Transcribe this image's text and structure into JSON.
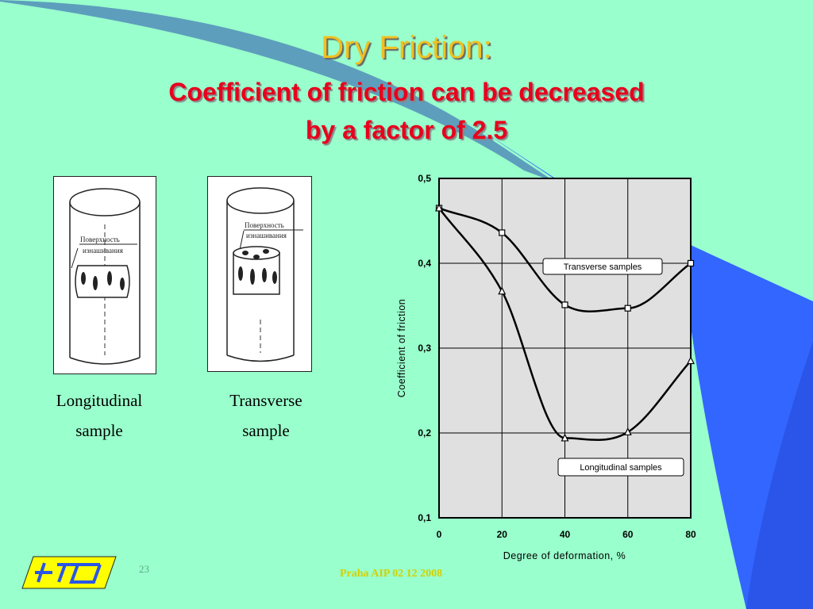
{
  "title": "Dry Friction:",
  "subtitle_line1": "Coefficient of friction can be decreased",
  "subtitle_line2": "by a factor of 2.5",
  "samples": {
    "longitudinal": {
      "caption_line1": "Longitudinal",
      "caption_line2": "sample",
      "label_line1": "Поверхность",
      "label_line2": "изнашивания"
    },
    "transverse": {
      "caption_line1": "Transverse",
      "caption_line2": "sample",
      "label_line1": "Поверхность",
      "label_line2": "изнашивания"
    }
  },
  "chart_data": {
    "type": "line",
    "xlabel": "Degree of deformation, %",
    "ylabel": "Coefficient  of  friction",
    "xlim": [
      0,
      80
    ],
    "ylim": [
      0.1,
      0.5
    ],
    "x_ticks": [
      "0",
      "20",
      "40",
      "60",
      "80"
    ],
    "y_ticks": [
      "0,1",
      "0,2",
      "0,3",
      "0,4",
      "0,5"
    ],
    "grid": true,
    "series": [
      {
        "name": "Transverse samples",
        "marker": "square",
        "x": [
          0,
          20,
          40,
          60,
          80
        ],
        "y": [
          0.465,
          0.436,
          0.351,
          0.347,
          0.4
        ]
      },
      {
        "name": "Longitudinal samples",
        "marker": "triangle",
        "x": [
          0,
          20,
          40,
          60,
          80
        ],
        "y": [
          0.465,
          0.367,
          0.194,
          0.201,
          0.285
        ]
      }
    ]
  },
  "footer": {
    "slide_number": "23",
    "text": "Praha AIP 02 12 2008"
  },
  "colors": {
    "background": "#99ffcc",
    "title": "#f0c020",
    "subtitle": "#e8001c",
    "accent_blue": "#3366ff",
    "plot_bg": "#e0e0e0"
  }
}
